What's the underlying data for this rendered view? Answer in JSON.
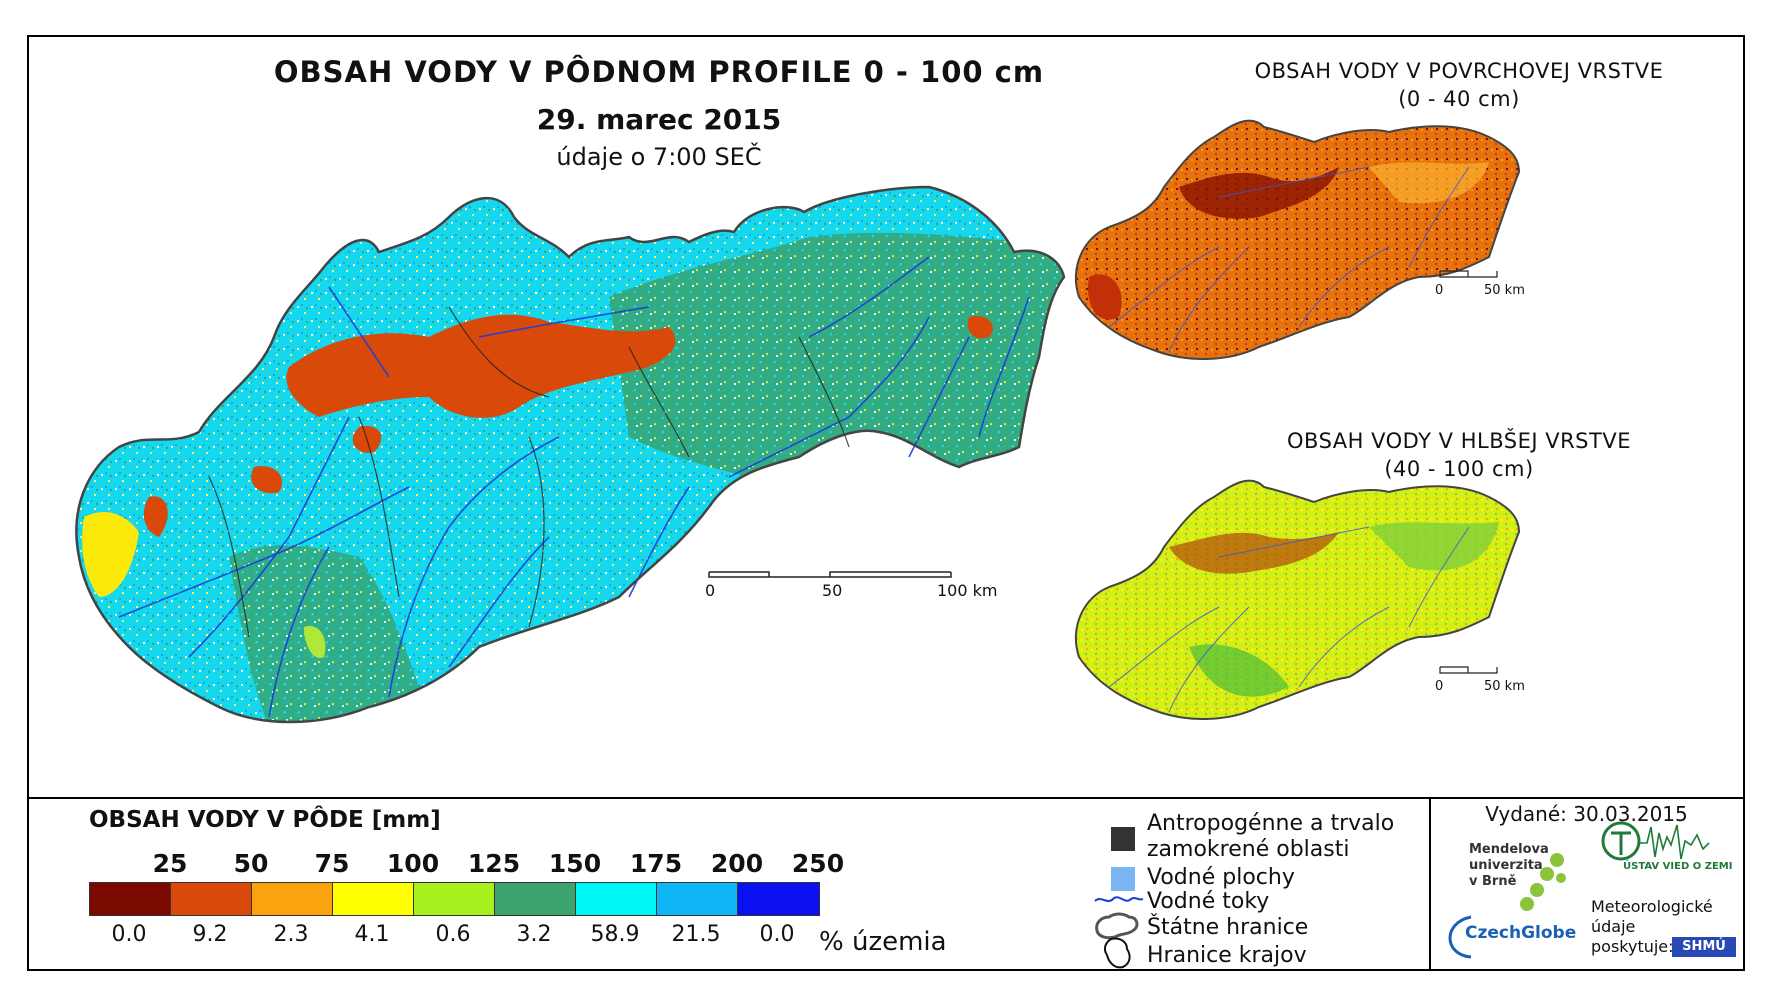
{
  "main_map": {
    "title": "OBSAH VODY V PÔDNOM PROFILE 0 - 100 cm",
    "date": "29. marec 2015",
    "time_note": "údaje o 7:00 SEČ",
    "scale": {
      "labels": [
        "0",
        "50",
        "100 km"
      ]
    }
  },
  "inset_top": {
    "title_line1": "OBSAH VODY V POVRCHOVEJ VRSTVE",
    "title_line2": "(0 - 40 cm)",
    "scale": {
      "labels": [
        "0",
        "50 km"
      ]
    }
  },
  "inset_bottom": {
    "title_line1": "OBSAH VODY V HLBŠEJ VRSTVE",
    "title_line2": "(40 - 100 cm)",
    "scale": {
      "labels": [
        "0",
        "50 km"
      ]
    }
  },
  "legend": {
    "title": "OBSAH VODY V PÔDE [mm]",
    "ticks": [
      "25",
      "50",
      "75",
      "100",
      "125",
      "150",
      "175",
      "200",
      "250"
    ],
    "colors": [
      "#7a0a00",
      "#d94a0a",
      "#fba30f",
      "#ffff00",
      "#a6f01e",
      "#3aa36e",
      "#00f5f5",
      "#10b5f5",
      "#0a10f0"
    ],
    "percentages": [
      "0.0",
      "9.2",
      "2.3",
      "4.1",
      "0.6",
      "3.2",
      "58.9",
      "21.5",
      "0.0"
    ],
    "percent_unit": "% územia",
    "items": {
      "anthropogenic_line1": "Antropogénne a trvalo",
      "anthropogenic_line2": "zamokrené oblasti",
      "water_bodies": "Vodné plochy",
      "streams": "Vodné toky",
      "state_border": "Štátne hranice",
      "regional_border": "Hranice krajov"
    }
  },
  "issued": "Vydané: 30.03.2015",
  "logos": {
    "mendel_line1": "Mendelova",
    "mendel_line2": "univerzita",
    "mendel_line3": "v Brně",
    "czechglobe": "CzechGlobe",
    "ustav": "ÚSTAV VIED O ZEMI",
    "shmu_line1": "Meteorologické",
    "shmu_line2": "údaje",
    "shmu_line3": "poskytuje:",
    "shmu": "SHMÚ"
  }
}
